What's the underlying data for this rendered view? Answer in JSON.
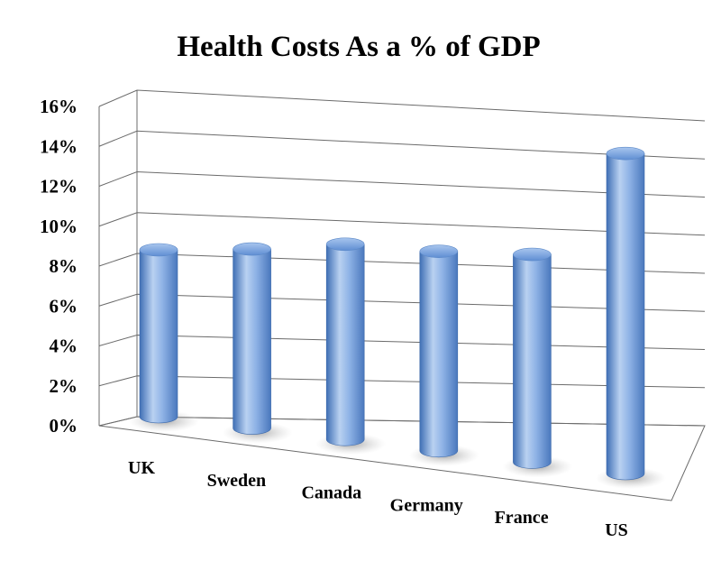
{
  "chart_data": {
    "type": "bar",
    "style": "3d-cylinder",
    "title": "Health Costs As a % of GDP",
    "xlabel": "",
    "ylabel": "",
    "categories": [
      "UK",
      "Sweden",
      "Canada",
      "Germany",
      "France",
      "US"
    ],
    "series": [
      {
        "values": [
          8.4,
          9.0,
          9.8,
          10.0,
          10.4,
          16.0
        ]
      }
    ],
    "ylim": [
      0,
      16
    ],
    "yticks": [
      "0%",
      "2%",
      "4%",
      "6%",
      "8%",
      "10%",
      "12%",
      "14%",
      "16%"
    ],
    "grid": true,
    "legend": "none",
    "colors": {
      "bar_light": "#c4d9f3",
      "bar_mid": "#7ea7e0",
      "bar_dark": "#3f6fb5",
      "grid": "#6b6b6b"
    }
  }
}
